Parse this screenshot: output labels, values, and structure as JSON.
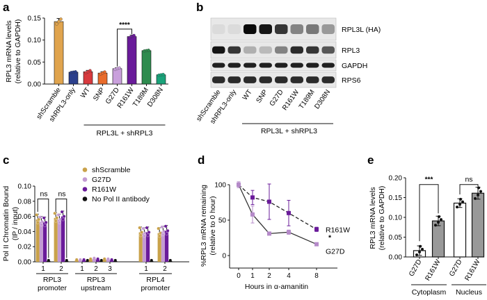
{
  "panels": {
    "a": "a",
    "b": "b",
    "c": "c",
    "d": "d",
    "e": "e"
  },
  "chart_data": [
    {
      "panel": "a",
      "type": "bar",
      "ylabel": "RPL3 mRNA levels",
      "ylabel2": "(relative to GAPDH)",
      "ylim": [
        0,
        0.15
      ],
      "yticks": [
        "0.00",
        "0.05",
        "0.10",
        "0.15"
      ],
      "categories": [
        "shScramble",
        "shRPL3-only",
        "WT",
        "SNP",
        "G27D",
        "R161W",
        "T189M",
        "D308N"
      ],
      "values": [
        0.142,
        0.027,
        0.028,
        0.025,
        0.035,
        0.108,
        0.076,
        0.021
      ],
      "errors": [
        0.007,
        0.001,
        0.003,
        0.003,
        0.002,
        0.003,
        0.001,
        0.001
      ],
      "colors": [
        "#e0a44e",
        "#2b3f8c",
        "#d83a3e",
        "#e96b2b",
        "#c9a0dc",
        "#6a1b9a",
        "#2e8b4e",
        "#1aa37a"
      ],
      "group_label": "RPL3L + shRPL3",
      "significance": "****"
    },
    {
      "panel": "b",
      "type": "table",
      "row_labels": [
        "RPL3L (HA)",
        "RPL3",
        "GAPDH",
        "RPS6"
      ],
      "lane_labels": [
        "shScramble",
        "shRPL3-only",
        "WT",
        "SNP",
        "G27D",
        "R161W",
        "T189M",
        "D308N"
      ],
      "group_label": "RPL3L + shRPL3",
      "band_intensity": [
        [
          0.05,
          0.05,
          1.0,
          0.95,
          0.8,
          0.45,
          0.5,
          0.35
        ],
        [
          0.95,
          0.8,
          0.25,
          0.2,
          0.45,
          0.85,
          0.8,
          0.65
        ],
        [
          0.9,
          0.9,
          0.9,
          0.9,
          0.9,
          0.9,
          0.9,
          0.9
        ],
        [
          0.85,
          0.85,
          0.85,
          0.85,
          0.85,
          0.85,
          0.85,
          0.85
        ]
      ]
    },
    {
      "panel": "c",
      "type": "bar",
      "ylabel": "Pol II Chromatin Bound",
      "ylabel2": "(IP / input)",
      "ylim": [
        0,
        0.1
      ],
      "yticks": [
        "0.00",
        "0.02",
        "0.04",
        "0.06",
        "0.08",
        "0.10"
      ],
      "legend": [
        {
          "name": "shScramble",
          "color": "#c9a24a"
        },
        {
          "name": "G27D",
          "color": "#c39bd3"
        },
        {
          "name": "R161W",
          "color": "#6a1b9a"
        },
        {
          "name": "No Pol II antibody",
          "color": "#111111"
        }
      ],
      "clusters": [
        {
          "tick": "1",
          "values": [
            0.056,
            0.053,
            0.052,
            0.001
          ]
        },
        {
          "tick": "2",
          "values": [
            0.058,
            0.056,
            0.06,
            0.001
          ]
        },
        {
          "tick": "1",
          "values": [
            0.002,
            0.002,
            0.002,
            0.001
          ]
        },
        {
          "tick": "2",
          "values": [
            0.003,
            0.004,
            0.003,
            0.001
          ]
        },
        {
          "tick": "3",
          "values": [
            0.003,
            0.003,
            0.002,
            0.001
          ]
        },
        {
          "tick": "1",
          "values": [
            0.039,
            0.038,
            0.039,
            0.001
          ]
        },
        {
          "tick": "2",
          "values": [
            0.038,
            0.04,
            0.041,
            0.001
          ]
        }
      ],
      "groups": [
        {
          "line1": "RPL3",
          "line2": "promoter",
          "from": 0,
          "to": 1
        },
        {
          "line1": "RPL3",
          "line2": "upstream",
          "from": 2,
          "to": 4
        },
        {
          "line1": "RPL4",
          "line2": "promoter",
          "from": 5,
          "to": 6
        }
      ],
      "significance": [
        "ns",
        "ns"
      ]
    },
    {
      "panel": "d",
      "type": "line",
      "ylabel": "%RPL3 mRNA remaining",
      "ylabel2": "(relative to 0 hour)",
      "xlabel": "Hours in α-amanitin",
      "ylim": [
        0,
        100
      ],
      "yticks": [
        "0",
        "50",
        "100"
      ],
      "x": [
        "0",
        "1",
        "2",
        "4",
        "8"
      ],
      "series": [
        {
          "name": "R161W",
          "values": [
            100,
            82,
            76,
            60,
            37
          ],
          "errors": [
            4,
            10,
            25,
            18,
            3
          ],
          "color": "#6a1b9a",
          "dashed": true
        },
        {
          "name": "G27D",
          "values": [
            100,
            58,
            31,
            33,
            16
          ],
          "errors": [
            4,
            12,
            2,
            3,
            2
          ],
          "color": "#b58ac9",
          "dashed": false
        }
      ],
      "significance": "*"
    },
    {
      "panel": "e",
      "type": "bar",
      "ylabel": "RPL3 mRNA levels",
      "ylabel2": "(relative to GAPDH)",
      "ylim": [
        0,
        0.2
      ],
      "yticks": [
        "0.00",
        "0.05",
        "0.10",
        "0.15",
        "0.20"
      ],
      "categories": [
        "G27D",
        "R161W",
        "G27D",
        "R161W"
      ],
      "values": [
        0.016,
        0.091,
        0.136,
        0.161
      ],
      "errors": [
        0.012,
        0.012,
        0.011,
        0.015
      ],
      "fills": [
        "#ffffff",
        "#999999",
        "#ffffff",
        "#999999"
      ],
      "groups": [
        "Cytoplasm",
        "Nucleus"
      ],
      "significance": [
        "***",
        "ns"
      ]
    }
  ]
}
